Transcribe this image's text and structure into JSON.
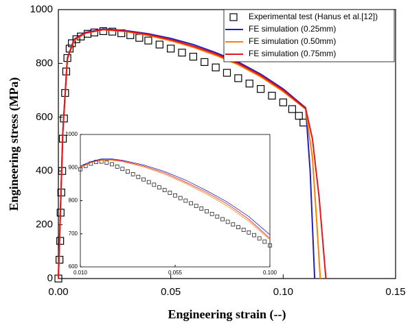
{
  "chart_data": [
    {
      "type": "line",
      "xlabel": "Engineering strain (--)",
      "ylabel": "Engineering stress (MPa)",
      "xlim": [
        0,
        0.15
      ],
      "ylim": [
        0,
        1000
      ],
      "xticks": [
        {
          "value": 0,
          "label": "0.00"
        },
        0.05,
        {
          "value": 0.1,
          "label": "0.10"
        },
        0.15
      ],
      "yticks": [
        0,
        200,
        400,
        600,
        800,
        1000
      ],
      "legend": "upper right",
      "series": [
        {
          "name": "Experimental test (Hanus et al.[12])",
          "color": "#000000",
          "marker": "square",
          "x": [
            0,
            0.0005,
            0.0008,
            0.001,
            0.0013,
            0.0017,
            0.002,
            0.0025,
            0.003,
            0.0035,
            0.004,
            0.005,
            0.006,
            0.008,
            0.01,
            0.013,
            0.016,
            0.02,
            0.024,
            0.028,
            0.032,
            0.036,
            0.04,
            0.045,
            0.05,
            0.055,
            0.06,
            0.065,
            0.07,
            0.075,
            0.08,
            0.085,
            0.09,
            0.095,
            0.1,
            0.104,
            0.107,
            0.109
          ],
          "values": [
            0,
            70,
            140,
            245,
            320,
            400,
            520,
            595,
            690,
            770,
            820,
            855,
            875,
            890,
            900,
            910,
            915,
            920,
            918,
            912,
            905,
            895,
            885,
            870,
            855,
            840,
            825,
            805,
            785,
            765,
            745,
            725,
            705,
            680,
            655,
            630,
            605,
            580
          ]
        },
        {
          "name": "FE simulation (0.25mm)",
          "color": "#1f1fbf",
          "x": [
            0,
            0.002,
            0.004,
            0.007,
            0.012,
            0.02,
            0.03,
            0.04,
            0.05,
            0.06,
            0.07,
            0.08,
            0.09,
            0.1,
            0.11,
            0.112,
            0.113,
            0.114
          ],
          "values": [
            0,
            550,
            820,
            890,
            915,
            928,
            922,
            910,
            893,
            870,
            840,
            805,
            760,
            705,
            635,
            400,
            200,
            0
          ]
        },
        {
          "name": "FE simulation (0.50mm)",
          "color": "#ff8000",
          "x": [
            0,
            0.002,
            0.004,
            0.007,
            0.012,
            0.02,
            0.03,
            0.04,
            0.05,
            0.06,
            0.07,
            0.08,
            0.09,
            0.1,
            0.11,
            0.113,
            0.115,
            0.1165
          ],
          "values": [
            0,
            545,
            815,
            885,
            912,
            925,
            918,
            904,
            884,
            860,
            830,
            795,
            750,
            695,
            630,
            450,
            200,
            0
          ]
        },
        {
          "name": "FE simulation (0.75mm)",
          "color": "#e8141c",
          "x": [
            0,
            0.002,
            0.004,
            0.007,
            0.012,
            0.02,
            0.03,
            0.04,
            0.05,
            0.06,
            0.07,
            0.08,
            0.09,
            0.1,
            0.11,
            0.113,
            0.116,
            0.119
          ],
          "values": [
            0,
            548,
            818,
            888,
            913,
            926,
            920,
            907,
            888,
            864,
            835,
            800,
            755,
            700,
            632,
            520,
            300,
            0
          ]
        }
      ]
    },
    {
      "type": "line",
      "xlim": [
        0.01,
        0.1
      ],
      "ylim": [
        600,
        1000
      ],
      "xticks": [
        {
          "value": 0.01,
          "label": "0.010"
        },
        0.055,
        {
          "value": 0.1,
          "label": "0.100"
        }
      ],
      "yticks": [
        600,
        700,
        800,
        900,
        1000
      ],
      "series": [
        {
          "color": "#000000",
          "marker": "square",
          "x": [
            0.01,
            0.0125,
            0.015,
            0.0175,
            0.02,
            0.0225,
            0.025,
            0.0275,
            0.03,
            0.0325,
            0.035,
            0.0375,
            0.04,
            0.0425,
            0.045,
            0.0475,
            0.05,
            0.0525,
            0.055,
            0.0575,
            0.06,
            0.0625,
            0.065,
            0.0675,
            0.07,
            0.0725,
            0.075,
            0.0775,
            0.08,
            0.0825,
            0.085,
            0.0875,
            0.09,
            0.0925,
            0.095,
            0.0975,
            0.1
          ],
          "values": [
            895,
            905,
            912,
            917,
            918,
            915,
            910,
            903,
            896,
            888,
            880,
            872,
            864,
            856,
            848,
            840,
            832,
            824,
            816,
            808,
            800,
            792,
            784,
            776,
            768,
            760,
            752,
            744,
            736,
            728,
            720,
            712,
            704,
            696,
            686,
            676,
            665
          ]
        },
        {
          "color": "#1f1fbf",
          "x": [
            0.01,
            0.015,
            0.02,
            0.025,
            0.03,
            0.04,
            0.05,
            0.06,
            0.07,
            0.08,
            0.09,
            0.1
          ],
          "values": [
            905,
            918,
            926,
            926,
            922,
            908,
            888,
            862,
            830,
            795,
            752,
            697
          ]
        },
        {
          "color": "#ff8000",
          "x": [
            0.01,
            0.015,
            0.02,
            0.025,
            0.03,
            0.04,
            0.05,
            0.06,
            0.07,
            0.08,
            0.09,
            0.1
          ],
          "values": [
            900,
            915,
            922,
            922,
            918,
            902,
            880,
            852,
            820,
            783,
            738,
            682
          ]
        },
        {
          "color": "#e8141c",
          "x": [
            0.01,
            0.015,
            0.02,
            0.025,
            0.03,
            0.04,
            0.05,
            0.06,
            0.07,
            0.08,
            0.09,
            0.1
          ],
          "values": [
            902,
            916,
            924,
            924,
            920,
            905,
            884,
            856,
            825,
            789,
            744,
            686
          ]
        }
      ]
    }
  ]
}
